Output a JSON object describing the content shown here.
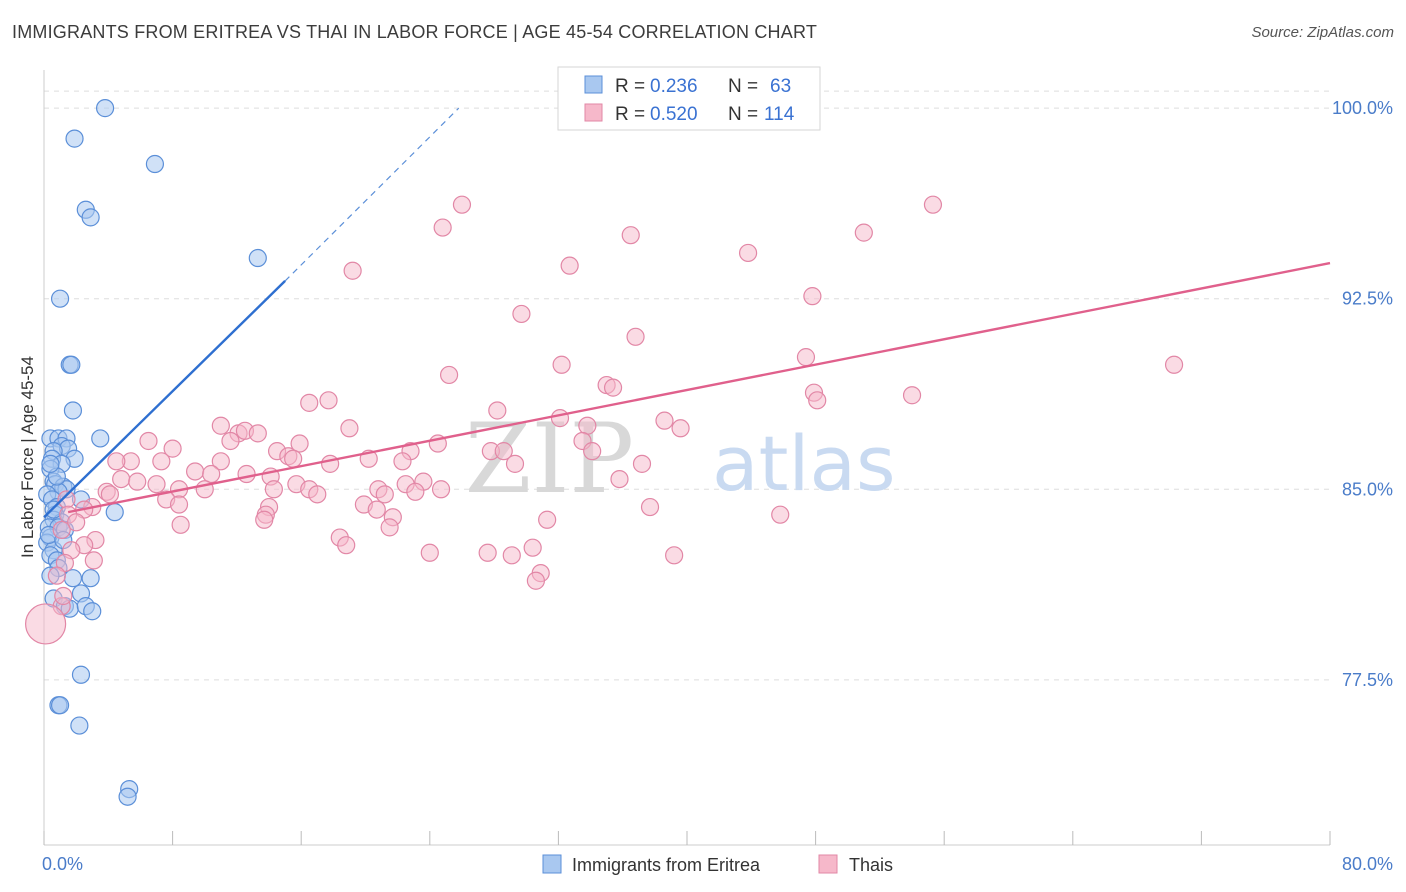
{
  "title": "IMMIGRANTS FROM ERITREA VS THAI IN LABOR FORCE | AGE 45-54 CORRELATION CHART",
  "source": "Source: ZipAtlas.com",
  "colors": {
    "eritrea_fill": "#a9c8f0",
    "eritrea_stroke": "#5b8fd8",
    "eritrea_line": "#2e6fd0",
    "thai_fill": "#f6b8ca",
    "thai_stroke": "#e287a6",
    "thai_line": "#e0608c",
    "tick": "#4a7cc9",
    "grid": "#dddddd"
  },
  "watermark": {
    "zip": "ZIP",
    "atlas": "atlas"
  },
  "legend": {
    "rows": [
      {
        "r_label": "R =",
        "r_value": "0.236",
        "n_label": "N =",
        "n_value": "63",
        "series": "eritrea"
      },
      {
        "r_label": "R =",
        "r_value": "0.520",
        "n_label": "N =",
        "n_value": "114",
        "series": "thai"
      }
    ]
  },
  "chart_data": {
    "type": "scatter",
    "title": "IMMIGRANTS FROM ERITREA VS THAI IN LABOR FORCE | AGE 45-54 CORRELATION CHART",
    "xlabel": "",
    "ylabel": "In Labor Force | Age 45-54",
    "xlim": [
      0,
      80
    ],
    "ylim": [
      71,
      101.5
    ],
    "x_tick_labels": [
      "0.0%",
      "80.0%"
    ],
    "y_ticks": [
      77.5,
      85.0,
      92.5,
      100.0
    ],
    "y_tick_labels": [
      "77.5%",
      "85.0%",
      "92.5%",
      "100.0%"
    ],
    "grid": true,
    "legend_position": "top-center",
    "series": [
      {
        "name": "Immigrants from Eritrea",
        "trend": {
          "x0": 0.0,
          "y0": 83.9,
          "x1": 15.0,
          "y1": 93.2,
          "x_dash_end": 25.8,
          "y_dash_end": 100.0
        },
        "points": [
          [
            3.8,
            100.0
          ],
          [
            1.9,
            98.8
          ],
          [
            6.9,
            97.8
          ],
          [
            2.6,
            96.0
          ],
          [
            2.9,
            95.7
          ],
          [
            13.3,
            94.1
          ],
          [
            1.0,
            92.5
          ],
          [
            1.6,
            89.9
          ],
          [
            1.7,
            89.9
          ],
          [
            1.8,
            88.1
          ],
          [
            0.4,
            87.0
          ],
          [
            0.9,
            87.0
          ],
          [
            1.4,
            87.0
          ],
          [
            3.5,
            87.0
          ],
          [
            1.1,
            86.7
          ],
          [
            1.5,
            86.6
          ],
          [
            0.6,
            86.5
          ],
          [
            0.5,
            86.2
          ],
          [
            1.9,
            86.2
          ],
          [
            1.1,
            86.0
          ],
          [
            0.4,
            85.8
          ],
          [
            0.6,
            85.3
          ],
          [
            0.7,
            85.2
          ],
          [
            1.2,
            85.1
          ],
          [
            1.4,
            85.0
          ],
          [
            0.9,
            84.9
          ],
          [
            0.2,
            84.8
          ],
          [
            0.5,
            84.6
          ],
          [
            2.3,
            84.6
          ],
          [
            0.8,
            84.3
          ],
          [
            4.4,
            84.1
          ],
          [
            0.7,
            84.0
          ],
          [
            0.6,
            83.8
          ],
          [
            1.1,
            83.7
          ],
          [
            0.3,
            83.5
          ],
          [
            0.9,
            83.5
          ],
          [
            1.3,
            83.4
          ],
          [
            0.4,
            83.1
          ],
          [
            0.2,
            82.9
          ],
          [
            0.6,
            82.6
          ],
          [
            0.4,
            82.4
          ],
          [
            0.8,
            82.2
          ],
          [
            0.9,
            81.9
          ],
          [
            0.4,
            81.6
          ],
          [
            1.8,
            81.5
          ],
          [
            2.9,
            81.5
          ],
          [
            2.3,
            80.9
          ],
          [
            0.6,
            80.7
          ],
          [
            1.3,
            80.4
          ],
          [
            1.6,
            80.3
          ],
          [
            2.6,
            80.4
          ],
          [
            3.0,
            80.2
          ],
          [
            2.3,
            77.7
          ],
          [
            0.9,
            76.5
          ],
          [
            1.0,
            76.5
          ],
          [
            2.2,
            75.7
          ],
          [
            5.3,
            73.2
          ],
          [
            5.2,
            72.9
          ],
          [
            0.6,
            84.2
          ],
          [
            0.3,
            83.2
          ],
          [
            0.8,
            85.5
          ],
          [
            0.4,
            86.0
          ],
          [
            1.2,
            83.0
          ]
        ]
      },
      {
        "name": "Thais",
        "trend": {
          "x0": 1.5,
          "y0": 84.1,
          "x1": 80.0,
          "y1": 93.9
        },
        "points": [
          [
            41.3,
            100.0
          ],
          [
            26.0,
            96.2
          ],
          [
            55.3,
            96.2
          ],
          [
            24.8,
            95.3
          ],
          [
            36.5,
            95.0
          ],
          [
            51.0,
            95.1
          ],
          [
            43.8,
            94.3
          ],
          [
            32.7,
            93.8
          ],
          [
            19.2,
            93.6
          ],
          [
            47.8,
            92.6
          ],
          [
            29.7,
            91.9
          ],
          [
            36.8,
            91.0
          ],
          [
            47.4,
            90.2
          ],
          [
            70.3,
            89.9
          ],
          [
            32.2,
            89.9
          ],
          [
            25.2,
            89.5
          ],
          [
            35.0,
            89.1
          ],
          [
            35.4,
            89.0
          ],
          [
            47.9,
            88.8
          ],
          [
            54.0,
            88.7
          ],
          [
            16.5,
            88.4
          ],
          [
            17.7,
            88.5
          ],
          [
            48.1,
            88.5
          ],
          [
            28.2,
            88.1
          ],
          [
            32.1,
            87.8
          ],
          [
            38.6,
            87.7
          ],
          [
            11.0,
            87.5
          ],
          [
            19.0,
            87.4
          ],
          [
            33.8,
            87.5
          ],
          [
            39.6,
            87.4
          ],
          [
            12.1,
            87.2
          ],
          [
            12.5,
            87.3
          ],
          [
            13.3,
            87.2
          ],
          [
            11.6,
            86.9
          ],
          [
            33.5,
            86.9
          ],
          [
            6.5,
            86.9
          ],
          [
            15.9,
            86.8
          ],
          [
            24.5,
            86.8
          ],
          [
            8.0,
            86.6
          ],
          [
            27.8,
            86.5
          ],
          [
            28.6,
            86.5
          ],
          [
            14.5,
            86.5
          ],
          [
            22.8,
            86.5
          ],
          [
            34.1,
            86.5
          ],
          [
            15.2,
            86.3
          ],
          [
            15.5,
            86.2
          ],
          [
            20.2,
            86.2
          ],
          [
            5.4,
            86.1
          ],
          [
            7.3,
            86.1
          ],
          [
            4.5,
            86.1
          ],
          [
            11.0,
            86.1
          ],
          [
            22.3,
            86.1
          ],
          [
            17.8,
            86.0
          ],
          [
            29.3,
            86.0
          ],
          [
            37.2,
            86.0
          ],
          [
            9.4,
            85.7
          ],
          [
            10.4,
            85.6
          ],
          [
            12.6,
            85.6
          ],
          [
            14.1,
            85.5
          ],
          [
            4.8,
            85.4
          ],
          [
            5.8,
            85.3
          ],
          [
            7.0,
            85.2
          ],
          [
            15.7,
            85.2
          ],
          [
            22.5,
            85.2
          ],
          [
            23.6,
            85.3
          ],
          [
            35.8,
            85.4
          ],
          [
            23.1,
            84.9
          ],
          [
            8.4,
            85.0
          ],
          [
            10.0,
            85.0
          ],
          [
            14.3,
            85.0
          ],
          [
            16.5,
            85.0
          ],
          [
            20.8,
            85.0
          ],
          [
            24.7,
            85.0
          ],
          [
            3.9,
            84.9
          ],
          [
            17.0,
            84.8
          ],
          [
            21.2,
            84.8
          ],
          [
            4.1,
            84.8
          ],
          [
            1.4,
            84.6
          ],
          [
            7.6,
            84.6
          ],
          [
            8.4,
            84.4
          ],
          [
            19.9,
            84.4
          ],
          [
            3.0,
            84.3
          ],
          [
            14.0,
            84.3
          ],
          [
            2.5,
            84.2
          ],
          [
            20.7,
            84.2
          ],
          [
            37.7,
            84.3
          ],
          [
            13.8,
            84.0
          ],
          [
            1.5,
            84.0
          ],
          [
            45.8,
            84.0
          ],
          [
            21.7,
            83.9
          ],
          [
            31.3,
            83.8
          ],
          [
            13.7,
            83.8
          ],
          [
            2.0,
            83.7
          ],
          [
            8.5,
            83.6
          ],
          [
            21.5,
            83.5
          ],
          [
            1.1,
            83.4
          ],
          [
            18.4,
            83.1
          ],
          [
            3.2,
            83.0
          ],
          [
            18.8,
            82.8
          ],
          [
            2.5,
            82.8
          ],
          [
            30.4,
            82.7
          ],
          [
            1.7,
            82.6
          ],
          [
            24.0,
            82.5
          ],
          [
            27.6,
            82.5
          ],
          [
            29.1,
            82.4
          ],
          [
            39.2,
            82.4
          ],
          [
            3.1,
            82.2
          ],
          [
            1.3,
            82.1
          ],
          [
            30.9,
            81.7
          ],
          [
            0.8,
            81.6
          ],
          [
            30.6,
            81.4
          ],
          [
            1.1,
            80.4
          ],
          [
            0.1,
            79.7
          ],
          [
            1.2,
            80.8
          ]
        ]
      }
    ]
  }
}
